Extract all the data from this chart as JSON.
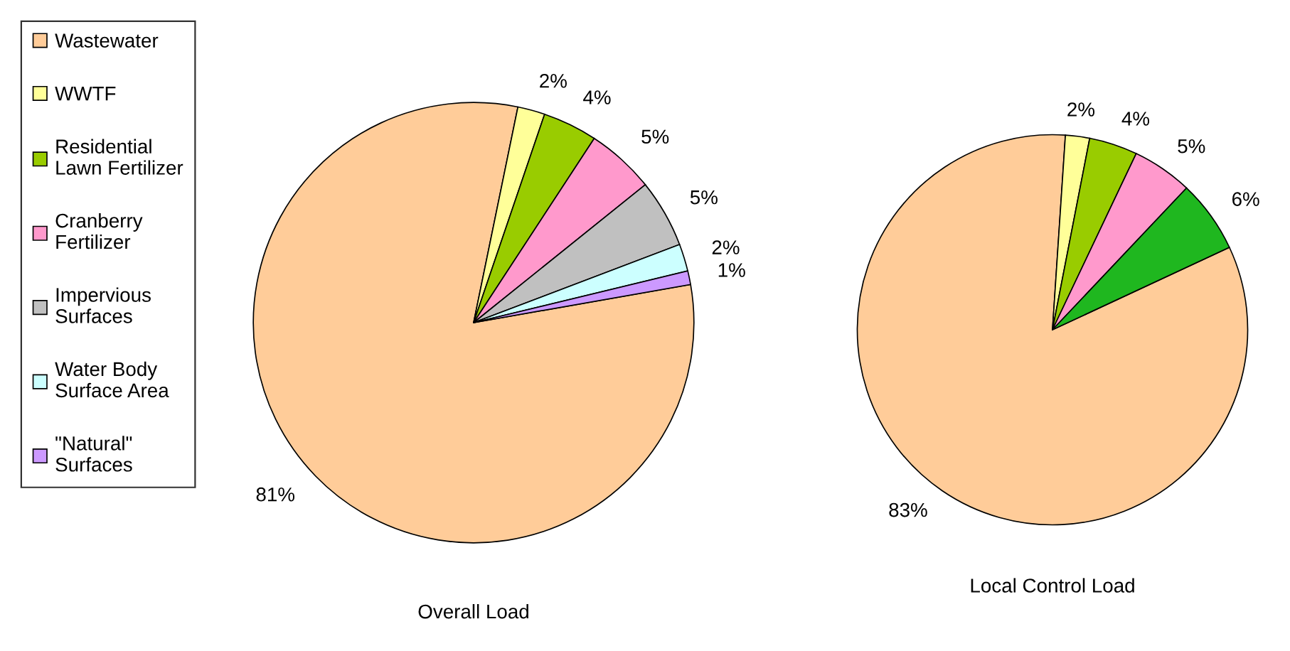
{
  "chart_data": [
    {
      "type": "pie",
      "xlabel": "Overall Load",
      "categories": [
        "Wastewater",
        "WWTF",
        "Residential\nLawn Fertilizer",
        "Cranberry\nFertilizer",
        "Impervious\nSurfaces",
        "Water Body\nSurface Area",
        "\"Natural\"\nSurfaces"
      ],
      "values": [
        81,
        2,
        4,
        5,
        5,
        2,
        1
      ],
      "colors": [
        "#ffcc99",
        "#ffff99",
        "#99cc00",
        "#ff99cc",
        "#c0c0c0",
        "#ccffff",
        "#cc99ff"
      ],
      "value_labels": [
        "81%",
        "2%",
        "4%",
        "5%",
        "5%",
        "2%",
        "1%"
      ],
      "legend": "left"
    },
    {
      "type": "pie",
      "xlabel": "Local Control Load",
      "categories": [
        null,
        null,
        null,
        null,
        null
      ],
      "values": [
        83,
        2,
        4,
        5,
        6
      ],
      "colors": [
        "#ffcc99",
        "#ffff99",
        "#99cc00",
        "#ff99cc",
        "#1fb71f"
      ],
      "value_labels": [
        "83%",
        "2%",
        "4%",
        "5%",
        "6%"
      ]
    }
  ]
}
